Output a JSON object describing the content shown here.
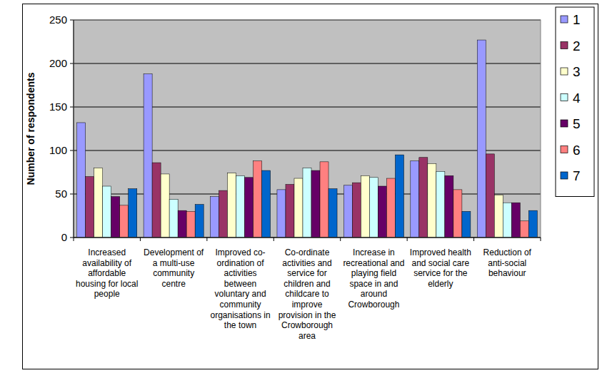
{
  "chart_data": {
    "type": "bar",
    "y_label": "Number of respondents",
    "categories": [
      "Increased availability of affordable housing for local people",
      "Development of a multi-use community centre",
      "Improved co-ordination of activities between voluntary and community organisations in the town",
      "Co-ordinate activities and service for children and childcare to improve provision in the Crowborough area",
      "Increase in recreational and playing field space in and around Crowborough",
      "Improved health and social care service for the elderly",
      "Reduction of anti-social behaviour"
    ],
    "series": [
      {
        "name": "1",
        "color": "#9999ff",
        "values": [
          132,
          188,
          47,
          55,
          60,
          88,
          227
        ]
      },
      {
        "name": "2",
        "color": "#993366",
        "values": [
          70,
          86,
          54,
          61,
          63,
          92,
          96
        ]
      },
      {
        "name": "3",
        "color": "#ffffcc",
        "values": [
          80,
          73,
          74,
          68,
          71,
          85,
          49
        ]
      },
      {
        "name": "4",
        "color": "#ccffff",
        "values": [
          59,
          44,
          71,
          80,
          69,
          76,
          40
        ]
      },
      {
        "name": "5",
        "color": "#660066",
        "values": [
          47,
          31,
          69,
          77,
          59,
          71,
          40
        ]
      },
      {
        "name": "6",
        "color": "#ff8080",
        "values": [
          37,
          30,
          88,
          87,
          68,
          55,
          19
        ]
      },
      {
        "name": "7",
        "color": "#0066cc",
        "values": [
          56,
          38,
          77,
          56,
          95,
          30,
          31
        ]
      }
    ],
    "ylim": [
      0,
      250
    ],
    "yticks": [
      0,
      50,
      100,
      150,
      200,
      250
    ],
    "grid": true,
    "legend": "right"
  }
}
